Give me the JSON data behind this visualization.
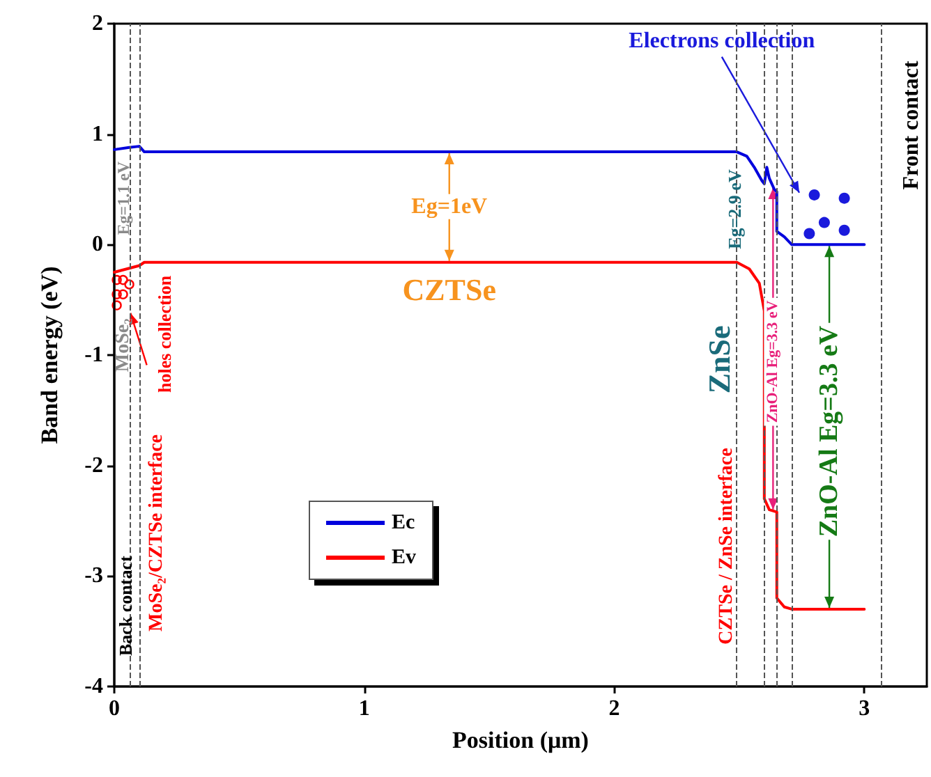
{
  "chart_data": {
    "type": "line",
    "xlabel": "Position (μm)",
    "ylabel": "Band energy (eV)",
    "xlim": [
      0,
      3.25
    ],
    "xticks": [
      0,
      1,
      2,
      3
    ],
    "ylim": [
      -4,
      2
    ],
    "yticks": [
      -4,
      -3,
      -2,
      -1,
      0,
      1,
      2
    ],
    "grid": false,
    "legend": "bottom left",
    "marker": "none",
    "line_style": "solid",
    "series": [
      {
        "name": "Ec",
        "color": "#0000dd",
        "x": [
          0,
          0.06,
          0.1,
          0.12,
          2.49,
          2.53,
          2.56,
          2.59,
          2.6,
          2.61,
          2.62,
          2.64,
          2.65,
          2.65,
          2.68,
          2.71,
          3.0
        ],
        "values": [
          0.86,
          0.88,
          0.89,
          0.84,
          0.84,
          0.8,
          0.7,
          0.58,
          0.55,
          0.7,
          0.6,
          0.5,
          0.48,
          0.12,
          0.07,
          0.0,
          0.0
        ]
      },
      {
        "name": "Ev",
        "color": "#ff0000",
        "x": [
          0,
          0.1,
          0.12,
          2.49,
          2.54,
          2.58,
          2.6,
          2.6,
          2.62,
          2.65,
          2.65,
          2.68,
          2.71,
          3.0
        ],
        "values": [
          -0.25,
          -0.19,
          -0.16,
          -0.16,
          -0.22,
          -0.35,
          -0.6,
          -2.3,
          -2.4,
          -2.42,
          -3.2,
          -3.28,
          -3.3,
          -3.3
        ]
      }
    ],
    "ref_lines": [
      {
        "axis": "x",
        "value": 0.06,
        "color": "#555555",
        "line_style": "dashed"
      },
      {
        "axis": "x",
        "value": 0.105,
        "color": "#555555",
        "line_style": "dashed"
      },
      {
        "axis": "x",
        "value": 2.49,
        "color": "#555555",
        "line_style": "dashed"
      },
      {
        "axis": "x",
        "value": 2.6,
        "color": "#555555",
        "line_style": "dashed"
      },
      {
        "axis": "x",
        "value": 2.65,
        "color": "#555555",
        "line_style": "dashed"
      },
      {
        "axis": "x",
        "value": 2.71,
        "color": "#555555",
        "line_style": "dashed"
      },
      {
        "axis": "x",
        "value": 3.07,
        "color": "#555555",
        "line_style": "dashed"
      }
    ],
    "annotations": [
      {
        "text": "Eg=1eV",
        "x": 1.34,
        "y": -0.16
      },
      "CZTSe",
      "Eg=1.1 eV",
      "MoSe₂",
      {
        "text": "Back contact",
        "x": 0.045,
        "y": -3.27
      },
      "MoSe₂/CZTSe interface",
      "holes collection",
      "CZTSe / ZnSe interface",
      "ZnSe",
      {
        "text": "Eg=2.9 eV",
        "x": 2.48,
        "y": 0.32
      },
      {
        "text": "ZnO-Al Eg=3.3 eV",
        "x": 2.635,
        "y": -1.06
      },
      "ZnO-Al Eg=3.3 eV",
      "Electrons collection",
      "Front contact"
    ]
  }
}
